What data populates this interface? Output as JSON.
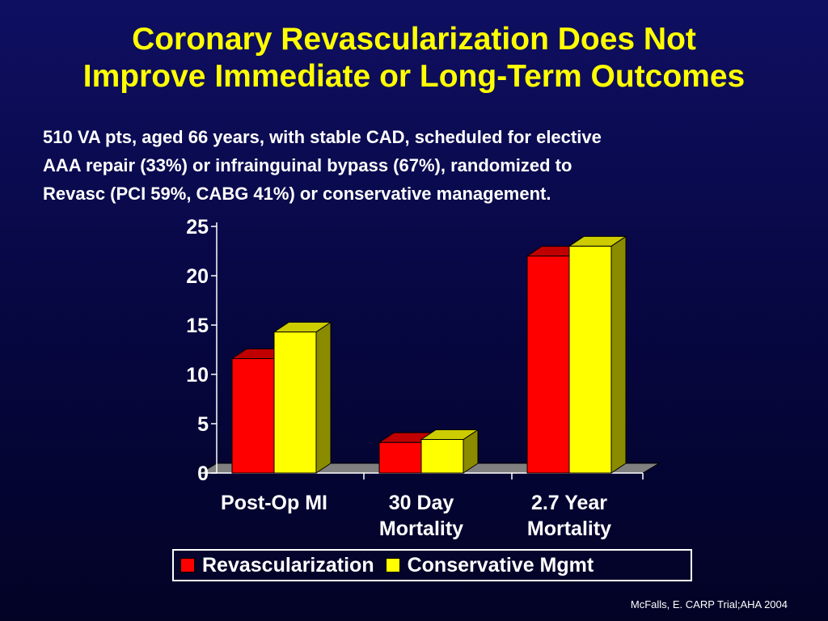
{
  "slide": {
    "title_lines": [
      "Coronary Revascularization Does Not",
      "Improve Immediate or Long-Term Outcomes"
    ],
    "intro_lines": [
      "510 VA pts, aged 66 years, with stable CAD, scheduled for elective",
      "AAA repair (33%) or infrainguinal bypass (67%), randomized to",
      "Revasc (PCI 59%, CABG 41%) or conservative management."
    ],
    "citation": "McFalls, E. CARP Trial;AHA 2004"
  },
  "chart_data": {
    "type": "bar",
    "style": "3d-clustered",
    "categories": [
      [
        "Post-Op MI"
      ],
      [
        "30 Day",
        "Mortality"
      ],
      [
        "2.7 Year",
        "Mortality"
      ]
    ],
    "series": [
      {
        "name": "Revascularization",
        "values": [
          11.6,
          3.1,
          22.0
        ],
        "color": "#ff0000",
        "side_color": "#8b0000",
        "top_color": "#c00000"
      },
      {
        "name": "Conservative Mgmt",
        "values": [
          14.3,
          3.4,
          23.0
        ],
        "color": "#ffff00",
        "side_color": "#8b8b00",
        "top_color": "#cccc00"
      }
    ],
    "y_ticks": [
      "0",
      "5",
      "10",
      "15",
      "20",
      "25"
    ],
    "ylim": [
      0,
      25
    ],
    "floor_color": "#808080",
    "legend_position": "bottom",
    "grid": false
  }
}
